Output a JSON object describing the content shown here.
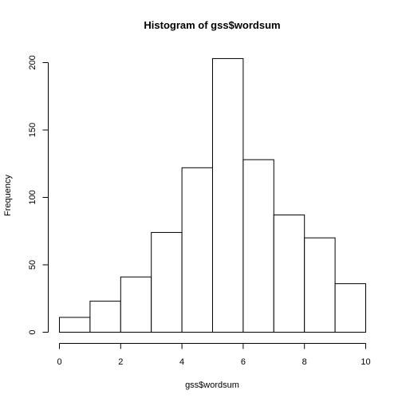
{
  "chart_data": {
    "type": "bar",
    "title": "Histogram of gss$wordsum",
    "xlabel": "gss$wordsum",
    "ylabel": "Frequency",
    "bins": [
      {
        "start": 0,
        "end": 1,
        "count": 11
      },
      {
        "start": 1,
        "end": 2,
        "count": 23
      },
      {
        "start": 2,
        "end": 3,
        "count": 41
      },
      {
        "start": 3,
        "end": 4,
        "count": 74
      },
      {
        "start": 4,
        "end": 5,
        "count": 122
      },
      {
        "start": 5,
        "end": 6,
        "count": 203
      },
      {
        "start": 6,
        "end": 7,
        "count": 128
      },
      {
        "start": 7,
        "end": 8,
        "count": 87
      },
      {
        "start": 8,
        "end": 9,
        "count": 70
      },
      {
        "start": 9,
        "end": 10,
        "count": 36
      }
    ],
    "xlim": [
      0,
      10
    ],
    "ylim": [
      0,
      200
    ],
    "x_ticks": [
      "0",
      "2",
      "4",
      "6",
      "8",
      "10"
    ],
    "y_ticks": [
      "0",
      "50",
      "100",
      "150",
      "200"
    ],
    "grid": false,
    "legend": "none",
    "bar_color": "#ffffff",
    "edge_color": "#000000"
  }
}
